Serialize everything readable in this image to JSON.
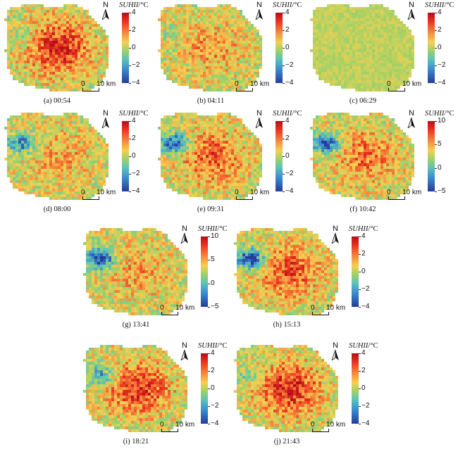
{
  "figure": {
    "colorbar_title": "SUHII",
    "colorbar_unit": "/°C",
    "north_label": "N",
    "scale_zero": "0",
    "scale_label": "10 km",
    "colorbar_colors": [
      "#b30d1a",
      "#e8321e",
      "#f6873c",
      "#f6d050",
      "#9fd167",
      "#5bc5b7",
      "#3a8ed0",
      "#263a9b"
    ]
  },
  "panels": [
    {
      "caption": "(a) 00:54",
      "ticks": [
        "4",
        "2",
        "0",
        "−2",
        "−4"
      ],
      "range": [
        -4,
        4
      ],
      "hot": 0.85,
      "cool_lake": 0.2
    },
    {
      "caption": "(b) 04:11",
      "ticks": [
        "4",
        "2",
        "0",
        "−2",
        "−4"
      ],
      "range": [
        -4,
        4
      ],
      "hot": 0.4,
      "cool_lake": 0.1
    },
    {
      "caption": "(c) 06:29",
      "ticks": [
        "4",
        "2",
        "0",
        "−2",
        "−4"
      ],
      "range": [
        -4,
        4
      ],
      "hot": 0.15,
      "cool_lake": 0.0
    },
    {
      "caption": "(d) 08:00",
      "ticks": [
        "4",
        "2",
        "0",
        "−2",
        "−4"
      ],
      "range": [
        -4,
        4
      ],
      "hot": 0.35,
      "cool_lake": 0.7
    },
    {
      "caption": "(e) 09:31",
      "ticks": [
        "4",
        "2",
        "0",
        "−2",
        "−4"
      ],
      "range": [
        -4,
        4
      ],
      "hot": 0.65,
      "cool_lake": 0.9
    },
    {
      "caption": "(f) 10:42",
      "ticks": [
        "10",
        "5",
        "0",
        "−5"
      ],
      "range": [
        -5,
        10
      ],
      "hot": 0.55,
      "cool_lake": 0.9
    },
    {
      "caption": "(g) 13:41",
      "ticks": [
        "10",
        "5",
        "0",
        "−5"
      ],
      "range": [
        -5,
        10
      ],
      "hot": 0.35,
      "cool_lake": 1.0
    },
    {
      "caption": "(h) 15:13",
      "ticks": [
        "4",
        "2",
        "0",
        "−2",
        "−4"
      ],
      "range": [
        -4,
        4
      ],
      "hot": 0.7,
      "cool_lake": 1.0
    },
    {
      "caption": "(i) 18:21",
      "ticks": [
        "4",
        "2",
        "0",
        "−2",
        "−4"
      ],
      "range": [
        -4,
        4
      ],
      "hot": 0.8,
      "cool_lake": 0.6
    },
    {
      "caption": "(j) 21:43",
      "ticks": [
        "4",
        "2",
        "0",
        "−2",
        "−4"
      ],
      "range": [
        -4,
        4
      ],
      "hot": 0.85,
      "cool_lake": 0.3
    }
  ]
}
